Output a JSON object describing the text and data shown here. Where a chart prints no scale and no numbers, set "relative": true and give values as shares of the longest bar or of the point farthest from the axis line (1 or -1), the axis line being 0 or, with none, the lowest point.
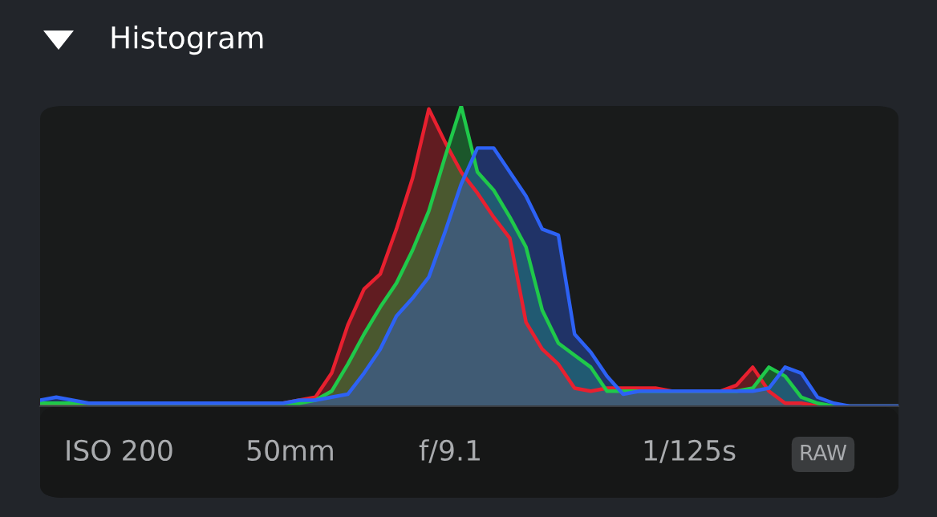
{
  "chart_data": {
    "type": "area",
    "title": "Histogram",
    "relative": true,
    "grid": false,
    "legend": false,
    "annotations": [
      "ISO 200",
      "50mm",
      "f/9.1",
      "1/125s",
      "RAW"
    ],
    "categories": [
      null,
      null,
      null,
      null,
      null,
      null,
      null,
      null,
      null,
      null,
      null,
      null,
      null,
      null,
      null,
      null,
      null,
      null,
      null,
      null,
      null,
      null,
      null,
      null,
      null,
      null,
      null,
      null,
      null,
      null,
      null,
      null,
      null,
      null,
      null,
      null,
      null,
      null,
      null,
      null,
      null,
      null,
      null,
      null,
      null,
      null,
      null,
      null,
      null,
      null,
      null,
      null,
      null,
      null
    ],
    "series": [
      {
        "color": "#e8202f",
        "values": [
          0.01,
          0.01,
          0.01,
          0.01,
          0.01,
          0.01,
          0.01,
          0.01,
          0.01,
          0.01,
          0.01,
          0.01,
          0.01,
          0.01,
          0.01,
          0.01,
          0.02,
          0.03,
          0.11,
          0.27,
          0.39,
          0.44,
          0.59,
          0.76,
          0.99,
          0.88,
          0.78,
          0.71,
          0.63,
          0.56,
          0.28,
          0.19,
          0.14,
          0.06,
          0.05,
          0.06,
          0.06,
          0.06,
          0.06,
          0.05,
          0.05,
          0.05,
          0.05,
          0.07,
          0.13,
          0.05,
          0.01,
          0.01,
          0,
          0,
          0,
          0,
          0,
          0
        ]
      },
      {
        "color": "#1fc94a",
        "values": [
          0.01,
          0.01,
          0.01,
          0.01,
          0.01,
          0.01,
          0.01,
          0.01,
          0.01,
          0.01,
          0.01,
          0.01,
          0.01,
          0.01,
          0.01,
          0.01,
          0.01,
          0.02,
          0.05,
          0.14,
          0.24,
          0.33,
          0.41,
          0.52,
          0.65,
          0.83,
          1.0,
          0.78,
          0.72,
          0.63,
          0.53,
          0.32,
          0.21,
          0.17,
          0.13,
          0.05,
          0.05,
          0.05,
          0.05,
          0.05,
          0.05,
          0.05,
          0.05,
          0.05,
          0.06,
          0.13,
          0.1,
          0.03,
          0.01,
          0,
          0,
          0,
          0,
          0
        ]
      },
      {
        "color": "#2d62f5",
        "values": [
          0.02,
          0.03,
          0.02,
          0.01,
          0.01,
          0.01,
          0.01,
          0.01,
          0.01,
          0.01,
          0.01,
          0.01,
          0.01,
          0.01,
          0.01,
          0.01,
          0.02,
          0.02,
          0.03,
          0.04,
          0.11,
          0.19,
          0.3,
          0.36,
          0.43,
          0.58,
          0.74,
          0.86,
          0.86,
          0.78,
          0.7,
          0.59,
          0.57,
          0.24,
          0.18,
          0.1,
          0.04,
          0.05,
          0.05,
          0.05,
          0.05,
          0.05,
          0.05,
          0.05,
          0.05,
          0.06,
          0.13,
          0.11,
          0.03,
          0.01,
          0,
          0,
          0,
          0
        ]
      }
    ]
  }
}
